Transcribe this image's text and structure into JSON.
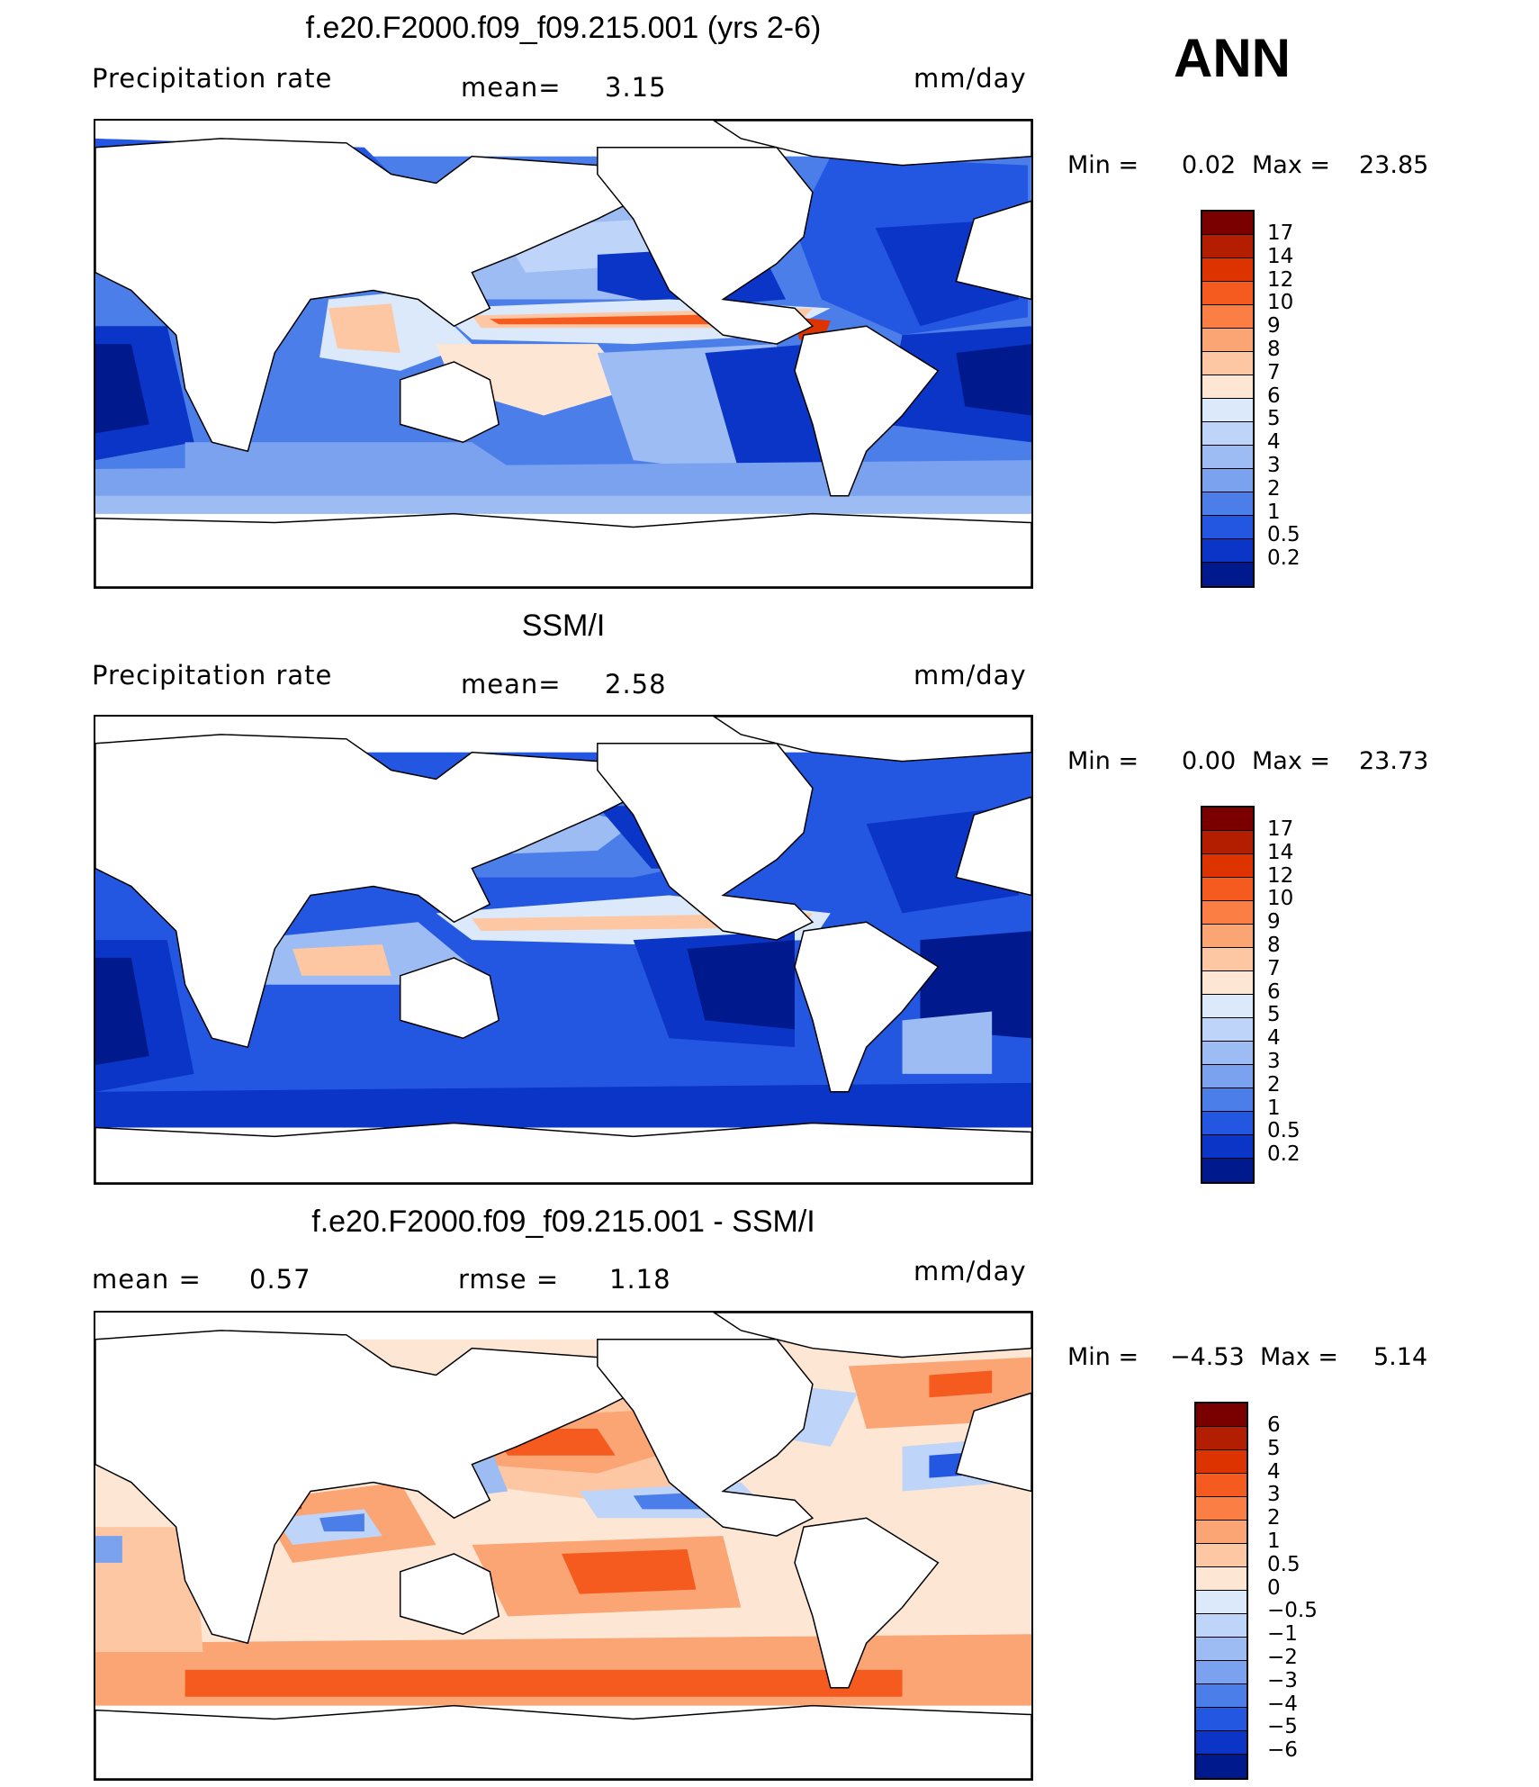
{
  "season": "ANN",
  "panels": [
    {
      "title": "f.e20.F2000.f09_f09.215.001 (yrs 2-6)",
      "left_label": "Precipitation  rate",
      "mid_label": "mean=",
      "mid_value": "3.15",
      "units": "mm/day",
      "min_label": "Min  =",
      "min_value": "0.02",
      "max_label": "Max  =",
      "max_value": "23.85",
      "kind": "model"
    },
    {
      "title": "SSM/I",
      "left_label": "Precipitation  rate",
      "mid_label": "mean=",
      "mid_value": "2.58",
      "units": "mm/day",
      "min_label": "Min  =",
      "min_value": "0.00",
      "max_label": "Max  =",
      "max_value": "23.73",
      "kind": "obs"
    },
    {
      "title": "f.e20.F2000.f09_f09.215.001 - SSM/I",
      "left_label": "mean  =",
      "left_value": "0.57",
      "mid_label": "rmse  =",
      "mid_value": "1.18",
      "units": "mm/day",
      "min_label": "Min  =",
      "min_value": "−4.53",
      "max_label": "Max  =",
      "max_value": "5.14",
      "kind": "diff"
    }
  ],
  "colorbars": {
    "precip": {
      "labels": [
        "17",
        "14",
        "12",
        "10",
        "9",
        "8",
        "7",
        "6",
        "5",
        "4",
        "3",
        "2",
        "1",
        "0.5",
        "0.2"
      ],
      "colors": [
        "#7a0000",
        "#b31e00",
        "#dd3300",
        "#f55a1e",
        "#fb7f45",
        "#fba474",
        "#fdc7a4",
        "#fde6d3",
        "#dbe9fb",
        "#bed4f8",
        "#9cbcf3",
        "#7aa2ee",
        "#4b7ee9",
        "#2357e2",
        "#0b35c6",
        "#001a8e"
      ]
    },
    "diff": {
      "labels": [
        "6",
        "5",
        "4",
        "3",
        "2",
        "1",
        "0.5",
        "0",
        "−0.5",
        "−1",
        "−2",
        "−3",
        "−4",
        "−5",
        "−6"
      ],
      "colors": [
        "#7a0000",
        "#b31e00",
        "#dd3300",
        "#f55a1e",
        "#fb7f45",
        "#fba474",
        "#fdc7a4",
        "#fde6d3",
        "#dbe9fb",
        "#bed4f8",
        "#9cbcf3",
        "#7aa2ee",
        "#4b7ee9",
        "#2357e2",
        "#0b35c6",
        "#001a8e"
      ]
    }
  }
}
